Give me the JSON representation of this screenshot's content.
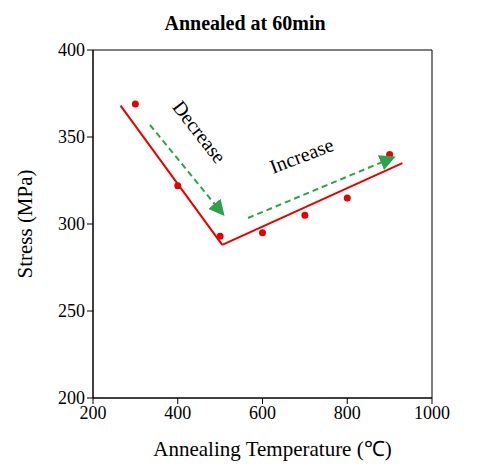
{
  "chart_data": {
    "type": "scatter",
    "title": "Annealed at 60min",
    "x_label": "Annealing Temperature (℃)",
    "y_label": "Stress (MPa)",
    "x": [
      300,
      400,
      500,
      600,
      700,
      800,
      900
    ],
    "values": [
      369,
      322,
      293,
      295,
      305,
      315,
      340
    ],
    "color": "#e60000",
    "marker": "circle",
    "xlim": [
      200,
      1000
    ],
    "xticks": [
      200,
      400,
      600,
      800,
      1000
    ],
    "ylim": [
      200,
      400
    ],
    "yticks": [
      200,
      250,
      300,
      350,
      400
    ],
    "grid": false,
    "trend_lines": [
      {
        "x": [
          265,
          505
        ],
        "values": [
          368,
          288
        ]
      },
      {
        "x": [
          505,
          930
        ],
        "values": [
          288,
          335
        ]
      }
    ],
    "annotations": [
      {
        "text": "Decrease",
        "color": "#2ca24a",
        "line_style": "dashed"
      },
      {
        "text": "Increase",
        "color": "#2ca24a",
        "line_style": "dashed"
      }
    ]
  }
}
